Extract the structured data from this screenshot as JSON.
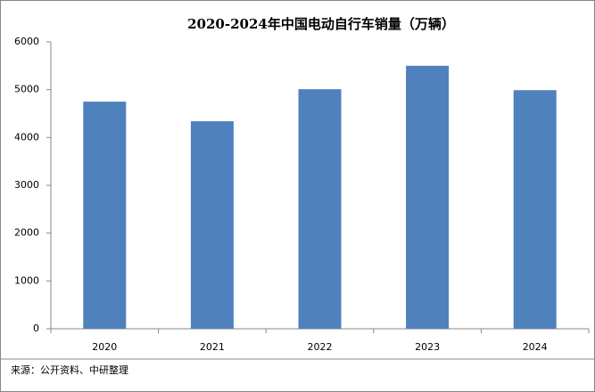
{
  "chart_data": {
    "type": "bar",
    "title": "2020-2024年中国电动自行车销量（万辆）",
    "categories": [
      "2020",
      "2021",
      "2022",
      "2023",
      "2024"
    ],
    "values": [
      4750,
      4340,
      5010,
      5500,
      4990
    ],
    "color": "#4f81bd",
    "ylim": [
      0,
      6000
    ],
    "yticks": [
      0,
      1000,
      2000,
      3000,
      4000,
      5000,
      6000
    ],
    "source": "来源：公开资料、中研整理"
  }
}
